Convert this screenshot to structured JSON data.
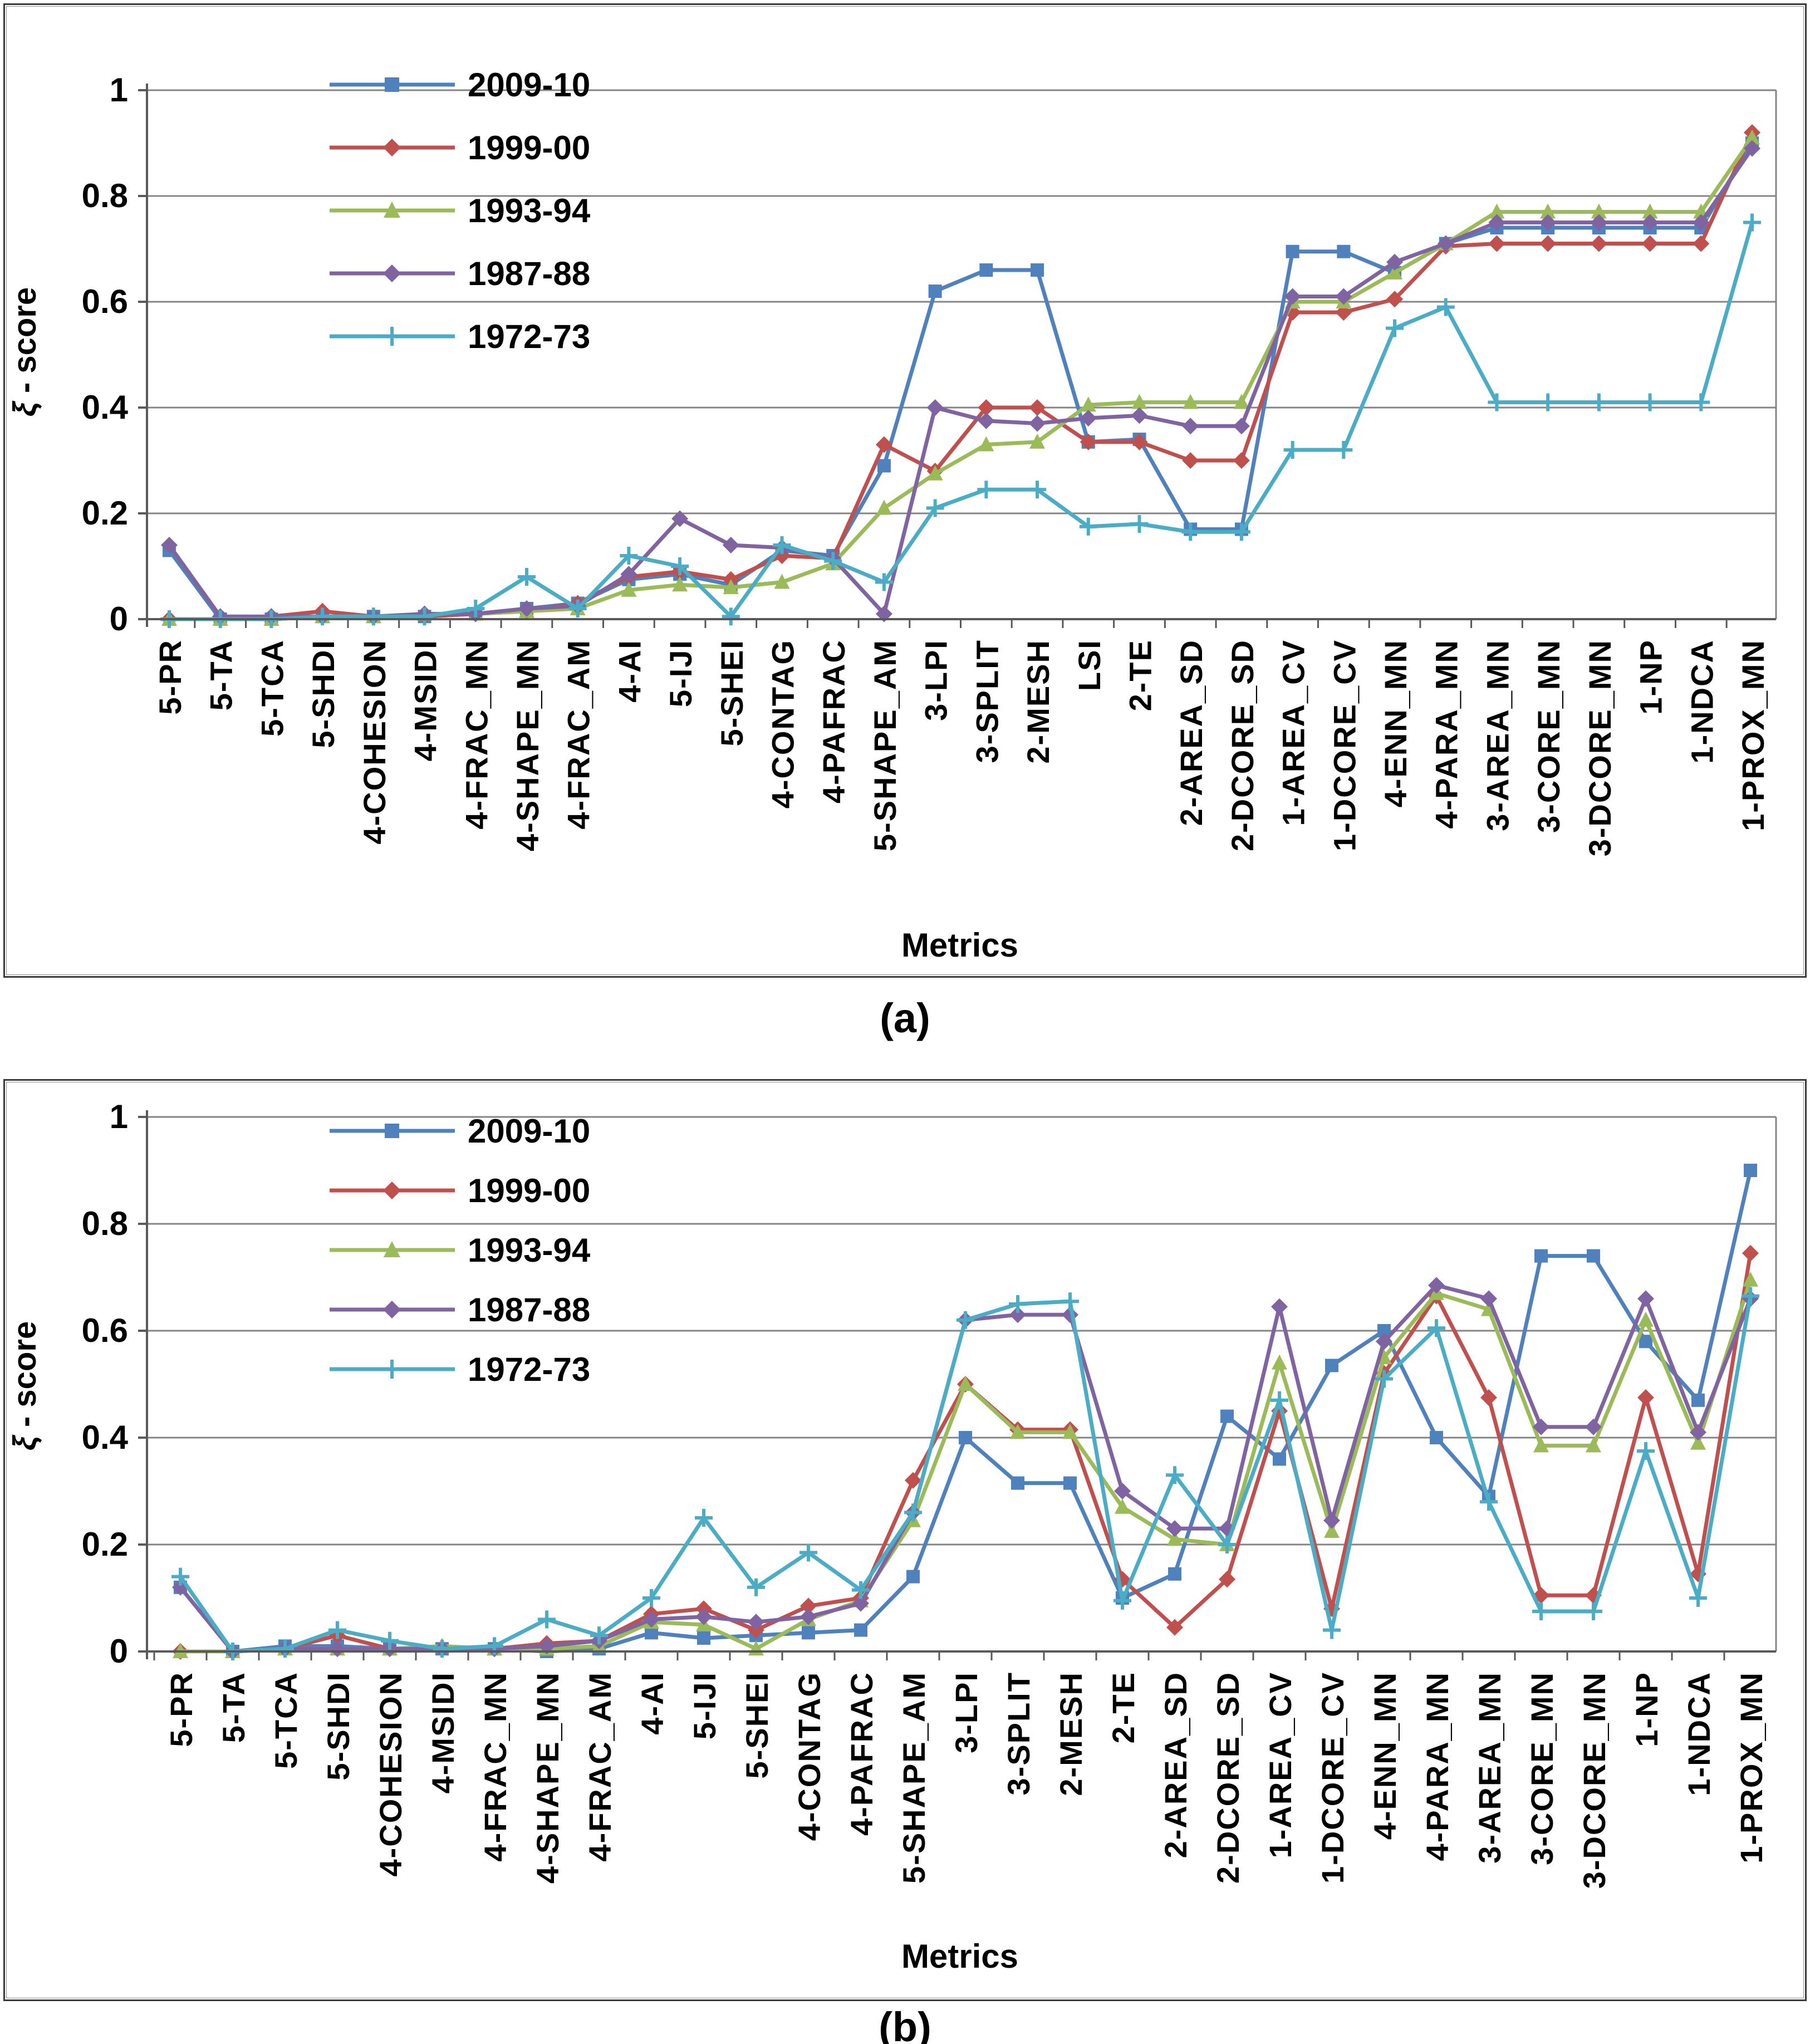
{
  "figure": {
    "caption_a": "(a)",
    "caption_b": "(b)",
    "ylabel": "ξ - score",
    "xlabel": "Metrics",
    "y_tick_labels": [
      "1",
      "0.8",
      "0.6",
      "0.4",
      "0.2",
      "0"
    ],
    "legend_labels": [
      "2009-10",
      "1999-00",
      "1993-94",
      "1987-88",
      "1972-73"
    ],
    "colors": {
      "series_2009_10": "#4F81BD",
      "series_1999_00": "#C0504D",
      "series_1993_94": "#9BBB59",
      "series_1987_88": "#8064A2",
      "series_1972_73": "#4BACC6",
      "gridline": "#848484",
      "axis": "#595959",
      "text": "#000000"
    }
  },
  "chart_data": [
    {
      "type": "line",
      "panel": "a",
      "title": "(a)",
      "xlabel": "Metrics",
      "ylabel": "ξ - score",
      "ylim": [
        0,
        1
      ],
      "y_ticks": [
        1,
        0.8,
        0.6,
        0.4,
        0.2,
        0
      ],
      "grid": true,
      "legend_position": "top-left-inside",
      "categories": [
        "5-PR",
        "5-TA",
        "5-TCA",
        "5-SHDI",
        "4-COHESION",
        "4-MSIDI",
        "4-FRAC_MN",
        "4-SHAPE_MN",
        "4-FRAC_AM",
        "4-AI",
        "5-IJI",
        "5-SHEI",
        "4-CONTAG",
        "4-PAFRAC",
        "5-SHAPE_AM",
        "3-LPI",
        "3-SPLIT",
        "2-MESH",
        "LSI",
        "2-TE",
        "2-AREA_SD",
        "2-DCORE_SD",
        "1-AREA_CV",
        "1-DCORE_CV",
        "4-ENN_MN",
        "4-PARA_MN",
        "3-AREA_MN",
        "3-CORE_MN",
        "3-DCORE_MN",
        "1-NP",
        "1-NDCA",
        "1-PROX_MN"
      ],
      "series": [
        {
          "name": "2009-10",
          "color": "#4F81BD",
          "marker": "square",
          "values": [
            0.13,
            0,
            0,
            0.005,
            0.005,
            0.005,
            0.01,
            0.02,
            0.03,
            0.075,
            0.085,
            0.065,
            0.13,
            0.12,
            0.29,
            0.62,
            0.66,
            0.66,
            0.335,
            0.34,
            0.17,
            0.17,
            0.695,
            0.695,
            0.655,
            0.71,
            0.74,
            0.74,
            0.74,
            0.74,
            0.74,
            0.9
          ]
        },
        {
          "name": "1999-00",
          "color": "#C0504D",
          "marker": "diamond",
          "values": [
            0,
            0,
            0.005,
            0.015,
            0.005,
            0.005,
            0.01,
            0.015,
            0.03,
            0.08,
            0.09,
            0.075,
            0.12,
            0.115,
            0.33,
            0.28,
            0.4,
            0.4,
            0.335,
            0.335,
            0.3,
            0.3,
            0.58,
            0.58,
            0.605,
            0.705,
            0.71,
            0.71,
            0.71,
            0.71,
            0.71,
            0.92
          ]
        },
        {
          "name": "1993-94",
          "color": "#9BBB59",
          "marker": "triangle",
          "values": [
            0,
            0,
            0,
            0.005,
            0.005,
            0.01,
            0.01,
            0.015,
            0.02,
            0.055,
            0.065,
            0.06,
            0.07,
            0.105,
            0.21,
            0.275,
            0.33,
            0.335,
            0.405,
            0.41,
            0.41,
            0.41,
            0.6,
            0.6,
            0.655,
            0.71,
            0.77,
            0.77,
            0.77,
            0.77,
            0.77,
            0.91
          ]
        },
        {
          "name": "1987-88",
          "color": "#8064A2",
          "marker": "diamond",
          "values": [
            0.14,
            0.005,
            0.005,
            0.005,
            0.005,
            0.01,
            0.01,
            0.02,
            0.025,
            0.085,
            0.19,
            0.14,
            0.135,
            0.115,
            0.01,
            0.4,
            0.375,
            0.37,
            0.38,
            0.385,
            0.365,
            0.365,
            0.61,
            0.61,
            0.675,
            0.71,
            0.75,
            0.75,
            0.75,
            0.75,
            0.75,
            0.89
          ]
        },
        {
          "name": "1972-73",
          "color": "#4BACC6",
          "marker": "plus",
          "values": [
            0,
            0,
            0,
            0.005,
            0.005,
            0.005,
            0.02,
            0.08,
            0.02,
            0.12,
            0.1,
            0.005,
            0.14,
            0.11,
            0.07,
            0.21,
            0.245,
            0.245,
            0.175,
            0.18,
            0.165,
            0.165,
            0.32,
            0.32,
            0.55,
            0.59,
            0.41,
            0.41,
            0.41,
            0.41,
            0.41,
            0.75
          ]
        }
      ]
    },
    {
      "type": "line",
      "panel": "b",
      "title": "(b)",
      "xlabel": "Metrics",
      "ylabel": "ξ - score",
      "ylim": [
        0,
        1
      ],
      "y_ticks": [
        1,
        0.8,
        0.6,
        0.4,
        0.2,
        0
      ],
      "grid": true,
      "legend_position": "top-left-inside",
      "categories": [
        "5-PR",
        "5-TA",
        "5-TCA",
        "5-SHDI",
        "4-COHESION",
        "4-MSIDI",
        "4-FRAC_MN",
        "4-SHAPE_MN",
        "4-FRAC_AM",
        "4-AI",
        "5-IJI",
        "5-SHEI",
        "4-CONTAG",
        "4-PAFRAC",
        "5-SHAPE_AM",
        "3-LPI",
        "3-SPLIT",
        "2-MESH",
        "2-TE",
        "2-AREA_SD",
        "2-DCORE_SD",
        "1-AREA_CV",
        "1-DCORE_CV",
        "4-ENN_MN",
        "4-PARA_MN",
        "3-AREA_MN",
        "3-CORE_MN",
        "3-DCORE_MN",
        "1-NP",
        "1-NDCA",
        "1-PROX_MN"
      ],
      "series": [
        {
          "name": "2009-10",
          "color": "#4F81BD",
          "marker": "square",
          "values": [
            0.12,
            0,
            0.01,
            0.01,
            0.005,
            0.005,
            0.005,
            0,
            0.005,
            0.035,
            0.025,
            0.03,
            0.035,
            0.04,
            0.14,
            0.4,
            0.315,
            0.315,
            0.1,
            0.145,
            0.44,
            0.36,
            0.535,
            0.6,
            0.4,
            0.29,
            0.74,
            0.74,
            0.58,
            0.47,
            0.9
          ]
        },
        {
          "name": "1999-00",
          "color": "#C0504D",
          "marker": "diamond",
          "values": [
            0,
            0,
            0.005,
            0.03,
            0.005,
            0.005,
            0.005,
            0.015,
            0.02,
            0.07,
            0.08,
            0.04,
            0.085,
            0.1,
            0.32,
            0.5,
            0.415,
            0.415,
            0.135,
            0.045,
            0.135,
            0.45,
            0.08,
            0.52,
            0.665,
            0.475,
            0.105,
            0.105,
            0.475,
            0.145,
            0.745
          ]
        },
        {
          "name": "1993-94",
          "color": "#9BBB59",
          "marker": "triangle",
          "values": [
            0,
            0,
            0.005,
            0.005,
            0.005,
            0.01,
            0.005,
            0.005,
            0.01,
            0.055,
            0.05,
            0.005,
            0.06,
            0.095,
            0.245,
            0.5,
            0.41,
            0.41,
            0.27,
            0.21,
            0.2,
            0.54,
            0.225,
            0.55,
            0.67,
            0.64,
            0.385,
            0.385,
            0.62,
            0.39,
            0.695
          ]
        },
        {
          "name": "1987-88",
          "color": "#8064A2",
          "marker": "diamond",
          "values": [
            0.12,
            0,
            0.005,
            0.005,
            0.005,
            0.005,
            0.005,
            0.01,
            0.02,
            0.06,
            0.065,
            0.055,
            0.065,
            0.09,
            0.26,
            0.62,
            0.63,
            0.63,
            0.3,
            0.23,
            0.23,
            0.645,
            0.245,
            0.58,
            0.685,
            0.66,
            0.42,
            0.42,
            0.66,
            0.41,
            0.66
          ]
        },
        {
          "name": "1972-73",
          "color": "#4BACC6",
          "marker": "plus",
          "values": [
            0.14,
            0,
            0.005,
            0.04,
            0.02,
            0.005,
            0.01,
            0.06,
            0.03,
            0.1,
            0.25,
            0.12,
            0.185,
            0.115,
            0.26,
            0.62,
            0.65,
            0.655,
            0.095,
            0.33,
            0.2,
            0.47,
            0.04,
            0.51,
            0.605,
            0.28,
            0.075,
            0.075,
            0.375,
            0.1,
            0.665
          ]
        }
      ]
    }
  ]
}
